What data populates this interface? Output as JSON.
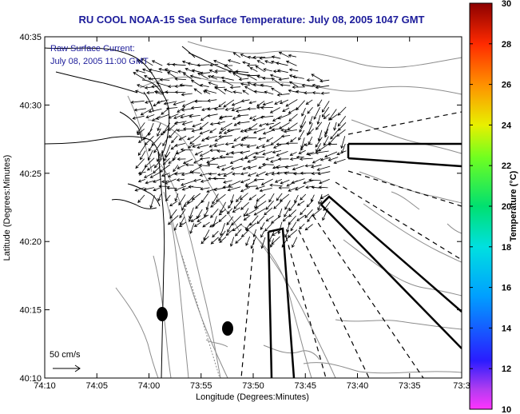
{
  "title": "RU COOL  NOAA-15  Sea Surface Temperature:  July 08, 2005 1047 GMT",
  "legend": {
    "line1": "Raw Surface Current:",
    "line2": "July 08, 2005 11:00 GMT"
  },
  "scale_label": "50 cm/s",
  "x_axis": {
    "label": "Longitude (Degrees:Minutes)",
    "ticks": [
      "74:10",
      "74:05",
      "74:00",
      "73:55",
      "73:50",
      "73:45",
      "73:40",
      "73:35",
      "73:3"
    ]
  },
  "y_axis": {
    "label": "Latitude (Degrees:Minutes)",
    "ticks": [
      "40:35",
      "40:30",
      "40:25",
      "40:20",
      "40:15",
      "40:10"
    ]
  },
  "colorbar": {
    "label": "Temperature (°C)",
    "ticks": [
      "30",
      "28",
      "26",
      "24",
      "22",
      "20",
      "18",
      "16",
      "14",
      "12",
      "10"
    ]
  },
  "colors": {
    "title": "#1c1c9a",
    "land_outline": "#000000",
    "bathymetry": "#8c8c8c"
  }
}
